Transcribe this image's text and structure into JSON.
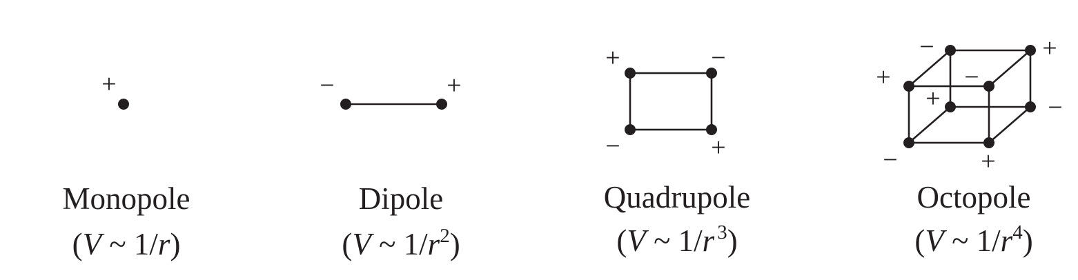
{
  "diagram": {
    "colors": {
      "ink": "#231f20",
      "background": "#ffffff"
    },
    "panels": [
      {
        "name": "Monopole",
        "formula": {
          "open": "(",
          "V": "V",
          "tilde": " ~ 1/",
          "r": "r",
          "power": "",
          "close": ")"
        },
        "signs": [
          "+"
        ]
      },
      {
        "name": "Dipole",
        "formula": {
          "open": "(",
          "V": "V",
          "tilde": " ~ 1/",
          "r": "r",
          "power": "2",
          "close": ")"
        },
        "signs": [
          "−",
          "+"
        ]
      },
      {
        "name": "Quadrupole",
        "formula": {
          "open": "(",
          "V": "V",
          "tilde": " ~ 1/",
          "r": "r",
          "power": "3",
          "close": ")"
        },
        "signs": [
          "+",
          "−",
          "−",
          "+"
        ]
      },
      {
        "name": "Octopole",
        "formula": {
          "open": "(",
          "V": "V",
          "tilde": " ~ 1/",
          "r": "r",
          "power": "4",
          "close": ")"
        },
        "signs": [
          "+",
          "−",
          "+",
          "−",
          "−",
          "+",
          "−",
          "+"
        ]
      }
    ]
  }
}
